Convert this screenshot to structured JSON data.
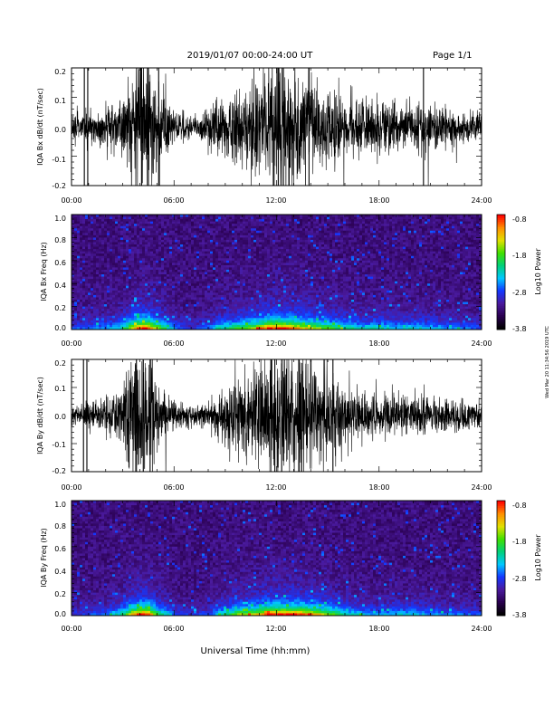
{
  "page": {
    "title": "2019/01/07  00:00-24:00 UT",
    "page_label": "Page 1/1",
    "x_axis_label": "Universal Time (hh:mm)",
    "side_note": "Wed Mar 20 11:34:56 2019 UTC"
  },
  "chart_data": [
    {
      "type": "line",
      "id": "bx-dbdt",
      "ylabel": "IQA Bx dB/dt (nT/sec)",
      "ylim": [
        -0.2,
        0.2
      ],
      "yticks": [
        "0.2",
        "0.1",
        "0.0",
        "-0.1",
        "-0.2"
      ],
      "xticks": [
        "00:00",
        "06:00",
        "12:00",
        "18:00",
        "24:00"
      ],
      "xlim_hours": [
        0,
        24
      ],
      "color": "#000000",
      "envelope": {
        "hours": [
          0,
          1,
          2,
          3,
          3.5,
          4,
          4.5,
          5,
          6,
          7,
          8,
          8.5,
          9,
          10,
          11,
          11.5,
          12,
          12.5,
          13,
          14,
          15,
          16,
          17,
          18,
          19,
          20,
          21,
          22,
          23,
          24
        ],
        "amplitude": [
          0.04,
          0.05,
          0.06,
          0.09,
          0.15,
          0.2,
          0.2,
          0.14,
          0.06,
          0.03,
          0.05,
          0.08,
          0.1,
          0.12,
          0.16,
          0.2,
          0.2,
          0.2,
          0.18,
          0.15,
          0.12,
          0.1,
          0.08,
          0.09,
          0.07,
          0.08,
          0.07,
          0.06,
          0.05,
          0.04
        ]
      },
      "spikes_hours": [
        0.75,
        0.95,
        4.1,
        4.5,
        5.1,
        12.1,
        12.4,
        13.9,
        20.6
      ]
    },
    {
      "type": "heatmap",
      "id": "bx-freq",
      "ylabel": "IQA Bx Freq (Hz)",
      "ylim": [
        0.0,
        1.0
      ],
      "yticks": [
        "1.0",
        "0.8",
        "0.6",
        "0.4",
        "0.2",
        "0.0"
      ],
      "xticks": [
        "00:00",
        "06:00",
        "12:00",
        "18:00",
        "24:00"
      ],
      "xlim_hours": [
        0,
        24
      ],
      "colorbar_label": "Log10 Power",
      "colorbar_ticks": [
        "-0.8",
        "-1.8",
        "-2.8",
        "-3.8"
      ],
      "zlim": [
        -3.8,
        -0.8
      ],
      "colorscale": [
        "#000000",
        "#2a0050",
        "#4a1a9e",
        "#1438ff",
        "#00c8ff",
        "#00d07a",
        "#40e000",
        "#e0e000",
        "#ff9000",
        "#ff0000"
      ]
    },
    {
      "type": "line",
      "id": "by-dbdt",
      "ylabel": "IQA By dB/dt (nT/sec)",
      "ylim": [
        -0.2,
        0.2
      ],
      "yticks": [
        "0.2",
        "0.1",
        "0.0",
        "-0.1",
        "-0.2"
      ],
      "xticks": [
        "00:00",
        "06:00",
        "12:00",
        "18:00",
        "24:00"
      ],
      "xlim_hours": [
        0,
        24
      ],
      "color": "#000000",
      "envelope": {
        "hours": [
          0,
          1,
          2,
          3,
          3.5,
          4,
          4.5,
          5,
          6,
          7,
          8,
          9,
          10,
          11,
          11.5,
          12,
          12.5,
          13,
          14,
          15,
          16,
          17,
          18,
          19,
          20,
          21,
          22,
          23,
          24
        ],
        "amplitude": [
          0.03,
          0.04,
          0.05,
          0.1,
          0.16,
          0.2,
          0.2,
          0.12,
          0.05,
          0.03,
          0.04,
          0.1,
          0.14,
          0.16,
          0.2,
          0.2,
          0.2,
          0.2,
          0.18,
          0.14,
          0.09,
          0.07,
          0.06,
          0.07,
          0.07,
          0.06,
          0.05,
          0.05,
          0.04
        ]
      },
      "spikes_hours": [
        0.7,
        0.9,
        3.8,
        4.2,
        4.6,
        11.9,
        12.3,
        13.3,
        15.3
      ]
    },
    {
      "type": "heatmap",
      "id": "by-freq",
      "ylabel": "IQA By Freq (Hz)",
      "ylim": [
        0.0,
        1.0
      ],
      "yticks": [
        "1.0",
        "0.8",
        "0.6",
        "0.4",
        "0.2",
        "0.0"
      ],
      "xticks": [
        "00:00",
        "06:00",
        "12:00",
        "18:00",
        "24:00"
      ],
      "xlim_hours": [
        0,
        24
      ],
      "colorbar_label": "Log10 Power",
      "colorbar_ticks": [
        "-0.8",
        "-1.8",
        "-2.8",
        "-3.8"
      ],
      "zlim": [
        -3.8,
        -0.8
      ],
      "colorscale": [
        "#000000",
        "#2a0050",
        "#4a1a9e",
        "#1438ff",
        "#00c8ff",
        "#00d07a",
        "#40e000",
        "#e0e000",
        "#ff9000",
        "#ff0000"
      ]
    }
  ]
}
